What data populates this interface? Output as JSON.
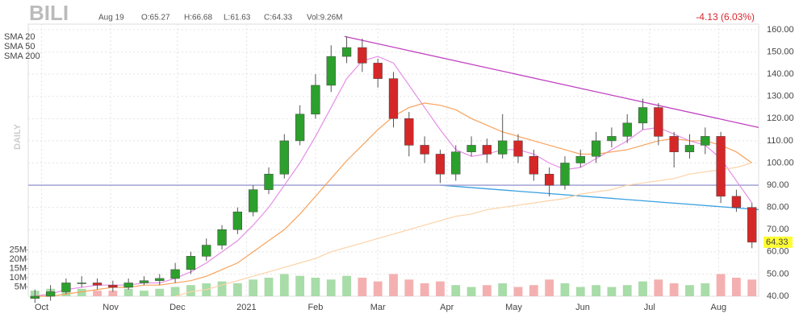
{
  "header": {
    "symbol": "BILI",
    "date": "Aug 19",
    "open": "O:65.27",
    "high": "H:66.68",
    "low": "L:61.63",
    "close": "C:64.33",
    "volume": "Vol:9.26M",
    "change": "-4.13 (6.03%)",
    "period": "DAILY"
  },
  "chart_data": {
    "type": "candlestick",
    "x": [
      3,
      10,
      17,
      24,
      31,
      38,
      45,
      52,
      59,
      66,
      73,
      80,
      87,
      94,
      101,
      108,
      115,
      122,
      129,
      136,
      143,
      150,
      157,
      164,
      171,
      178,
      185,
      192,
      199,
      206,
      213,
      220,
      227,
      234,
      241,
      248,
      255,
      262,
      269,
      276,
      283,
      290,
      297,
      304,
      311,
      318,
      325
    ],
    "open": [
      39,
      40,
      42,
      46,
      46,
      45,
      44,
      46,
      47,
      48,
      52,
      58,
      63,
      70,
      78,
      88,
      95,
      110,
      122,
      135,
      148,
      152,
      145,
      138,
      120,
      108,
      104,
      95,
      105,
      108,
      104,
      110,
      103,
      95,
      90,
      100,
      103,
      110,
      112,
      118,
      125,
      112,
      105,
      108,
      112,
      85,
      80
    ],
    "high": [
      43,
      45,
      48,
      49,
      48,
      47,
      48,
      49,
      50,
      55,
      60,
      66,
      72,
      80,
      90,
      98,
      113,
      126,
      140,
      153,
      157,
      156,
      147,
      141,
      123,
      112,
      106,
      108,
      112,
      111,
      122,
      113,
      106,
      98,
      103,
      106,
      114,
      116,
      122,
      129,
      127,
      114,
      113,
      116,
      114,
      88,
      82
    ],
    "low": [
      37,
      38,
      41,
      44,
      43,
      42,
      43,
      45,
      45,
      46,
      50,
      56,
      61,
      68,
      76,
      86,
      93,
      108,
      120,
      132,
      145,
      141,
      134,
      116,
      103,
      100,
      91,
      92,
      103,
      100,
      102,
      100,
      92,
      85,
      88,
      98,
      100,
      107,
      109,
      115,
      108,
      98,
      102,
      104,
      82,
      78,
      61.63
    ],
    "close": [
      40,
      42,
      46,
      46,
      45,
      44,
      46,
      47,
      48,
      52,
      58,
      63,
      70,
      78,
      88,
      95,
      110,
      122,
      135,
      148,
      152,
      145,
      138,
      120,
      108,
      104,
      95,
      105,
      108,
      104,
      110,
      103,
      95,
      90,
      100,
      103,
      110,
      112,
      118,
      125,
      112,
      105,
      108,
      112,
      85,
      80,
      64.33
    ],
    "volume": [
      3,
      4,
      5,
      4,
      3,
      3,
      4,
      3,
      4,
      5,
      6,
      7,
      8,
      7,
      9,
      10,
      12,
      11,
      10,
      9,
      11,
      10,
      8,
      12,
      9,
      7,
      8,
      6,
      5,
      6,
      7,
      5,
      6,
      9,
      7,
      5,
      6,
      5,
      6,
      8,
      9,
      7,
      6,
      7,
      12,
      10,
      9
    ],
    "up_color": "#2ca02c",
    "down_color": "#d62728",
    "up_volume_color": "#a8dca8",
    "down_volume_color": "#f4b0b0",
    "sma": [
      {
        "name": "SMA 20",
        "color": "#e58ee5",
        "values": [
          40,
          41,
          43,
          44,
          45,
          45,
          45,
          46,
          46,
          48,
          51,
          55,
          60,
          65,
          72,
          80,
          90,
          100,
          112,
          125,
          138,
          146,
          148,
          145,
          135,
          125,
          115,
          106,
          103,
          104,
          106,
          106,
          104,
          100,
          97,
          98,
          102,
          106,
          110,
          115,
          116,
          113,
          110,
          108,
          102,
          92,
          82
        ]
      },
      {
        "name": "SMA 50",
        "color": "#f7a35c",
        "values": [
          40,
          40,
          41,
          42,
          43,
          44,
          44,
          45,
          45,
          46,
          47,
          49,
          52,
          55,
          60,
          65,
          70,
          77,
          85,
          93,
          101,
          108,
          115,
          121,
          125,
          127,
          126,
          124,
          120,
          117,
          114,
          112,
          110,
          108,
          106,
          104,
          104,
          105,
          106,
          108,
          110,
          111,
          110,
          110,
          108,
          105,
          100
        ]
      },
      {
        "name": "SMA 200",
        "color": "#fbd3a8",
        "values": [
          null,
          null,
          null,
          null,
          null,
          null,
          null,
          null,
          null,
          40,
          42,
          43,
          45,
          47,
          49,
          51,
          53,
          55,
          57,
          60,
          62,
          64,
          66,
          68,
          70,
          72,
          74,
          76,
          77,
          79,
          80,
          81,
          82,
          83,
          84,
          86,
          87,
          88,
          90,
          91,
          92,
          93,
          95,
          96,
          97,
          98,
          100
        ]
      }
    ],
    "trendlines": [
      {
        "color": "#c040c0",
        "x": [
          142,
          328
        ],
        "y": [
          157,
          116
        ]
      },
      {
        "color": "#3aa0e0",
        "x": [
          185,
          328
        ],
        "y": [
          90,
          79
        ]
      },
      {
        "color": "#9a9ad0",
        "x": [
          0,
          328
        ],
        "y": [
          90,
          90
        ]
      }
    ],
    "xlim": [
      0,
      328
    ],
    "xticks": [
      {
        "value": 6,
        "label": "Oct"
      },
      {
        "value": 37,
        "label": "Nov"
      },
      {
        "value": 67,
        "label": "Dec"
      },
      {
        "value": 98,
        "label": "2021"
      },
      {
        "value": 129,
        "label": "Feb"
      },
      {
        "value": 157,
        "label": "Mar"
      },
      {
        "value": 188,
        "label": "Apr"
      },
      {
        "value": 218,
        "label": "May"
      },
      {
        "value": 249,
        "label": "Jun"
      },
      {
        "value": 279,
        "label": "Jul"
      },
      {
        "value": 310,
        "label": "Aug"
      }
    ],
    "ylim": [
      40,
      160
    ],
    "yticks": [
      {
        "value": 40,
        "label": "40.00"
      },
      {
        "value": 50,
        "label": "50.00"
      },
      {
        "value": 60,
        "label": "60.00"
      },
      {
        "value": 70,
        "label": "70.00"
      },
      {
        "value": 80,
        "label": "80.00"
      },
      {
        "value": 90,
        "label": "90.00"
      },
      {
        "value": 100,
        "label": "100.00"
      },
      {
        "value": 110,
        "label": "110.00"
      },
      {
        "value": 120,
        "label": "120.00"
      },
      {
        "value": 130,
        "label": "130.00"
      },
      {
        "value": 140,
        "label": "140.00"
      },
      {
        "value": 150,
        "label": "150.00"
      },
      {
        "value": 160,
        "label": "160.00"
      }
    ],
    "y2lim": [
      0,
      30
    ],
    "y2ticks": [
      {
        "value": 5,
        "label": "5M"
      },
      {
        "value": 10,
        "label": "10M"
      },
      {
        "value": 15,
        "label": "15M"
      },
      {
        "value": 20,
        "label": "20M"
      },
      {
        "value": 25,
        "label": "25M"
      }
    ],
    "grid": true
  }
}
